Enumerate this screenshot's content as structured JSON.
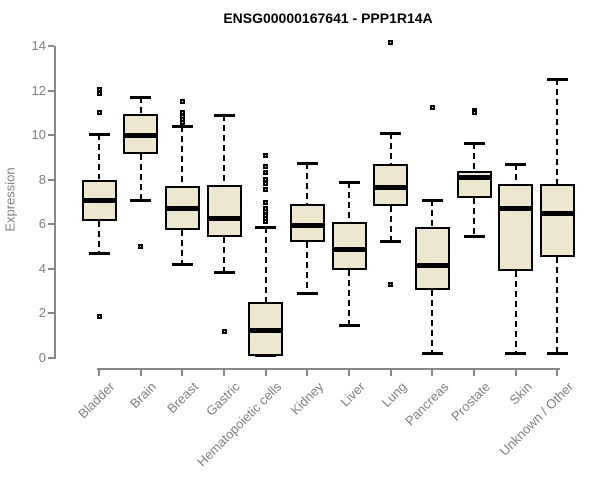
{
  "title": "ENSG00000167641 - PPP1R14A",
  "chart_data": {
    "type": "boxplot",
    "title": "ENSG00000167641 - PPP1R14A",
    "xlabel": "",
    "ylabel": "Expression",
    "ylim": [
      0,
      14
    ],
    "yticks": [
      0,
      2,
      4,
      6,
      8,
      10,
      12,
      14
    ],
    "grid": false,
    "legend": "none",
    "categories": [
      "Bladder",
      "Brain",
      "Breast",
      "Gastric",
      "Hematopoietic cells",
      "Kidney",
      "Liver",
      "Lung",
      "Pancreas",
      "Prostate",
      "Skin",
      "Unknown / Other"
    ],
    "series": [
      {
        "name": "Bladder",
        "whislo": 4.65,
        "q1": 6.15,
        "med": 7.05,
        "q3": 8.0,
        "whishi": 10.05,
        "outliers": [
          12.05,
          11.85,
          11.0,
          1.85
        ]
      },
      {
        "name": "Brain",
        "whislo": 7.05,
        "q1": 9.15,
        "med": 10.0,
        "q3": 10.95,
        "whishi": 11.7,
        "outliers": [
          5.0
        ]
      },
      {
        "name": "Breast",
        "whislo": 4.15,
        "q1": 5.75,
        "med": 6.7,
        "q3": 7.7,
        "whishi": 10.4,
        "outliers": [
          11.5,
          11.0,
          10.85,
          10.7,
          10.55
        ]
      },
      {
        "name": "Gastric",
        "whislo": 3.8,
        "q1": 5.4,
        "med": 6.25,
        "q3": 7.75,
        "whishi": 10.9,
        "outliers": [
          1.15
        ]
      },
      {
        "name": "Hematopoietic cells",
        "whislo": 0.05,
        "q1": 0.05,
        "med": 1.2,
        "q3": 2.5,
        "whishi": 5.85,
        "outliers": [
          9.1,
          8.6,
          8.3,
          8.0,
          7.8,
          7.55,
          6.95,
          6.7,
          6.55,
          6.4,
          6.25,
          6.1
        ]
      },
      {
        "name": "Kidney",
        "whislo": 2.85,
        "q1": 5.2,
        "med": 5.95,
        "q3": 6.9,
        "whishi": 8.75,
        "outliers": []
      },
      {
        "name": "Liver",
        "whislo": 1.4,
        "q1": 3.95,
        "med": 4.85,
        "q3": 6.1,
        "whishi": 7.9,
        "outliers": []
      },
      {
        "name": "Lung",
        "whislo": 5.2,
        "q1": 6.8,
        "med": 7.65,
        "q3": 8.7,
        "whishi": 10.1,
        "outliers": [
          14.15,
          3.3
        ]
      },
      {
        "name": "Pancreas",
        "whislo": 0.15,
        "q1": 3.05,
        "med": 4.15,
        "q3": 5.85,
        "whishi": 7.1,
        "outliers": [
          11.25
        ]
      },
      {
        "name": "Prostate",
        "whislo": 5.4,
        "q1": 7.15,
        "med": 8.1,
        "q3": 8.4,
        "whishi": 9.65,
        "outliers": [
          11.1,
          11.0
        ]
      },
      {
        "name": "Skin",
        "whislo": 0.15,
        "q1": 3.9,
        "med": 6.7,
        "q3": 7.8,
        "whishi": 8.7,
        "outliers": []
      },
      {
        "name": "Unknown / Other",
        "whislo": 0.15,
        "q1": 4.5,
        "med": 6.45,
        "q3": 7.8,
        "whishi": 12.5,
        "outliers": []
      }
    ],
    "colors": {
      "box_fill": "#ece7cd",
      "box_border": "#000000",
      "median": "#000000",
      "axis": "#878787",
      "tick_text": "#808080",
      "title_text": "#000000"
    }
  }
}
